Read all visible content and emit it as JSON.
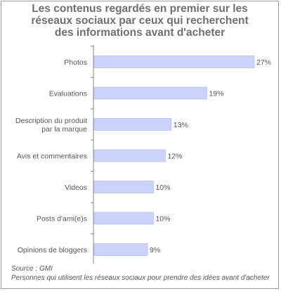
{
  "chart_data": {
    "type": "bar",
    "orientation": "horizontal",
    "title_lines": [
      "Les contenus regardés en premier sur les",
      "réseaux sociaux par ceux qui recherchent",
      "des informations avant d'acheter"
    ],
    "categories": [
      [
        "Photos"
      ],
      [
        "Evaluations"
      ],
      [
        "Description du produit",
        "par la marque"
      ],
      [
        "Avis et commentaires"
      ],
      [
        "Videos"
      ],
      [
        "Posts d'ami(e)s"
      ],
      [
        "Opinions de bloggers"
      ]
    ],
    "values": [
      27,
      19,
      13,
      12,
      10,
      10,
      9
    ],
    "value_labels": [
      "27%",
      "19%",
      "13%",
      "12%",
      "10%",
      "10%",
      "9%"
    ],
    "xlim": [
      0,
      27
    ],
    "grid": false,
    "legend": "none",
    "bar_color": "#ccd3fb",
    "bar_edge_color": "#aab3e6"
  },
  "footer": {
    "source": "Source : GMI",
    "note": "Personnes qui utilisent les réseaux sociaux pour prendre des idées avant d'acheter"
  }
}
